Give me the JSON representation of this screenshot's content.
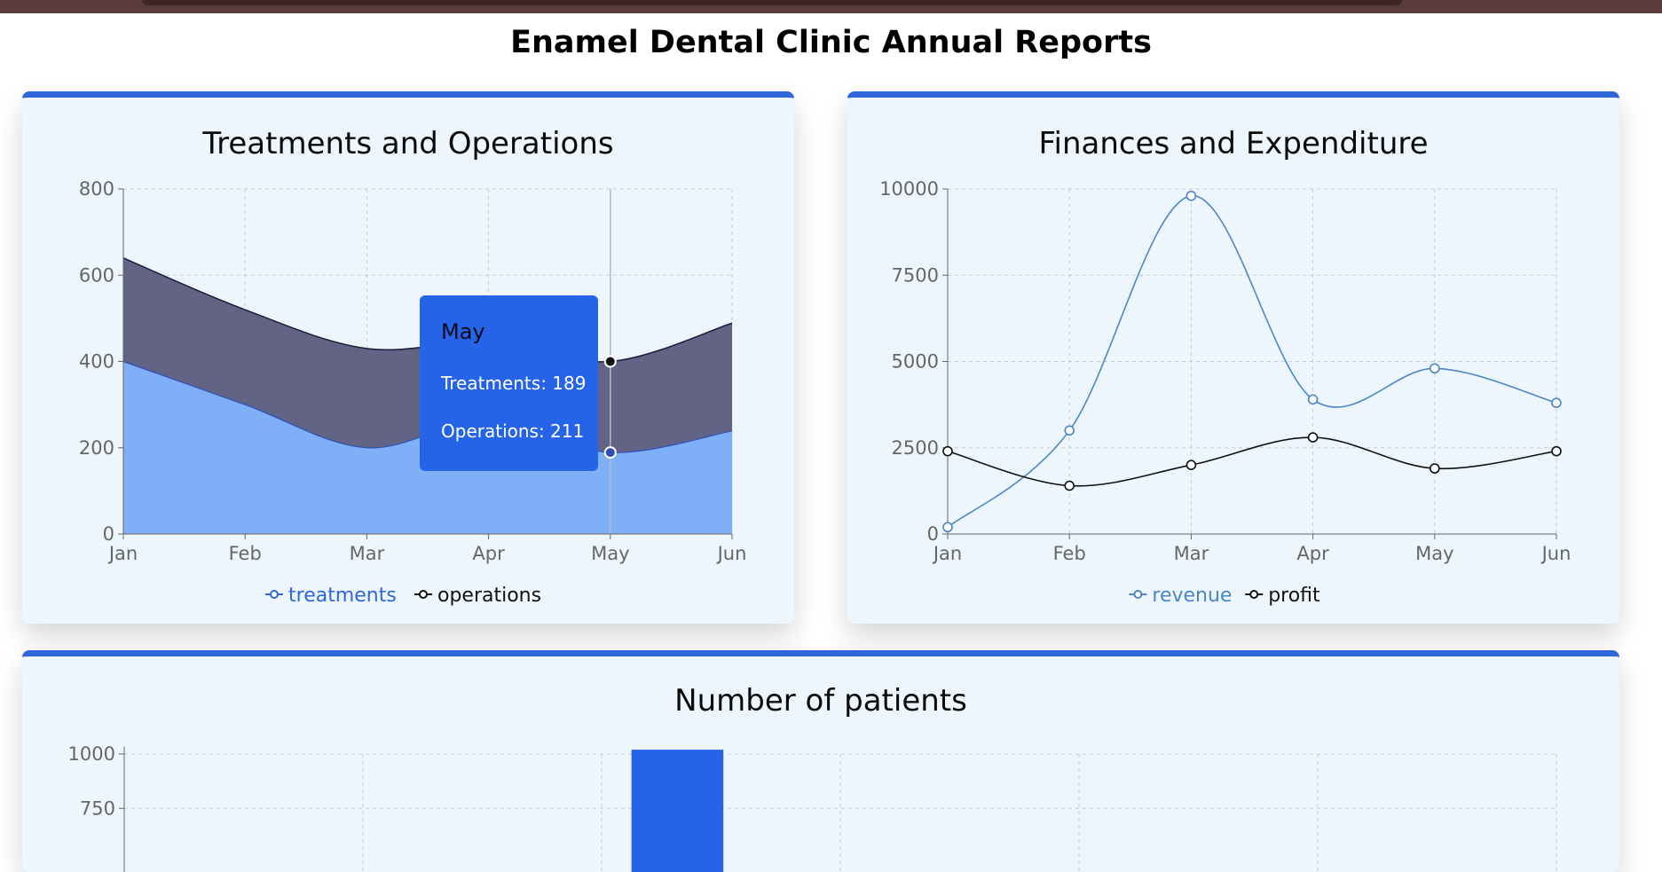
{
  "page": {
    "title": "Enamel Dental Clinic Annual Reports"
  },
  "colors": {
    "accent": "#2f66d9",
    "card_bg": "#eef6fd",
    "treatments_fill": "#7fb0f7",
    "operations_fill": "#636485",
    "revenue_line": "#4a86c8",
    "profit_line": "#111111",
    "bar_fill": "#2563e8",
    "tooltip_bg": "#2563e8"
  },
  "cards": {
    "treatments": {
      "title": "Treatments and Operations"
    },
    "finances": {
      "title": "Finances and Expenditure"
    },
    "patients": {
      "title": "Number of patients"
    }
  },
  "tooltip": {
    "month": "May",
    "rows": [
      {
        "label": "Treatments:",
        "value": "189"
      },
      {
        "label": "Operations:",
        "value": "211"
      }
    ]
  },
  "chart_data": [
    {
      "type": "area",
      "title": "Treatments and Operations",
      "stacked": true,
      "categories": [
        "Jan",
        "Feb",
        "Mar",
        "Apr",
        "May",
        "Jun"
      ],
      "series": [
        {
          "name": "treatments",
          "values": [
            400,
            300,
            200,
            265,
            189,
            239
          ]
        },
        {
          "name": "operations",
          "values": [
            240,
            220,
            230,
            180,
            211,
            250
          ]
        }
      ],
      "ylim": [
        0,
        800
      ],
      "yticks": [
        "0",
        "200",
        "400",
        "600",
        "800"
      ],
      "grid": true,
      "legend": "bottom"
    },
    {
      "type": "line",
      "title": "Finances and Expenditure",
      "categories": [
        "Jan",
        "Feb",
        "Mar",
        "Apr",
        "May",
        "Jun"
      ],
      "series": [
        {
          "name": "revenue",
          "values": [
            200,
            3000,
            9800,
            3900,
            4800,
            3800
          ]
        },
        {
          "name": "profit",
          "values": [
            2400,
            1400,
            2000,
            2800,
            1900,
            2400
          ]
        }
      ],
      "ylim": [
        0,
        10000
      ],
      "yticks": [
        "0",
        "2500",
        "5000",
        "7500",
        "10000"
      ],
      "grid": true,
      "legend": "bottom"
    },
    {
      "type": "bar",
      "title": "Number of patients",
      "categories": [
        "",
        "",
        "",
        "",
        "",
        ""
      ],
      "values": [
        null,
        null,
        1020,
        null,
        null,
        null
      ],
      "ylim": [
        0,
        1000
      ],
      "yticks": [
        "750",
        "1000"
      ],
      "grid": true
    }
  ]
}
